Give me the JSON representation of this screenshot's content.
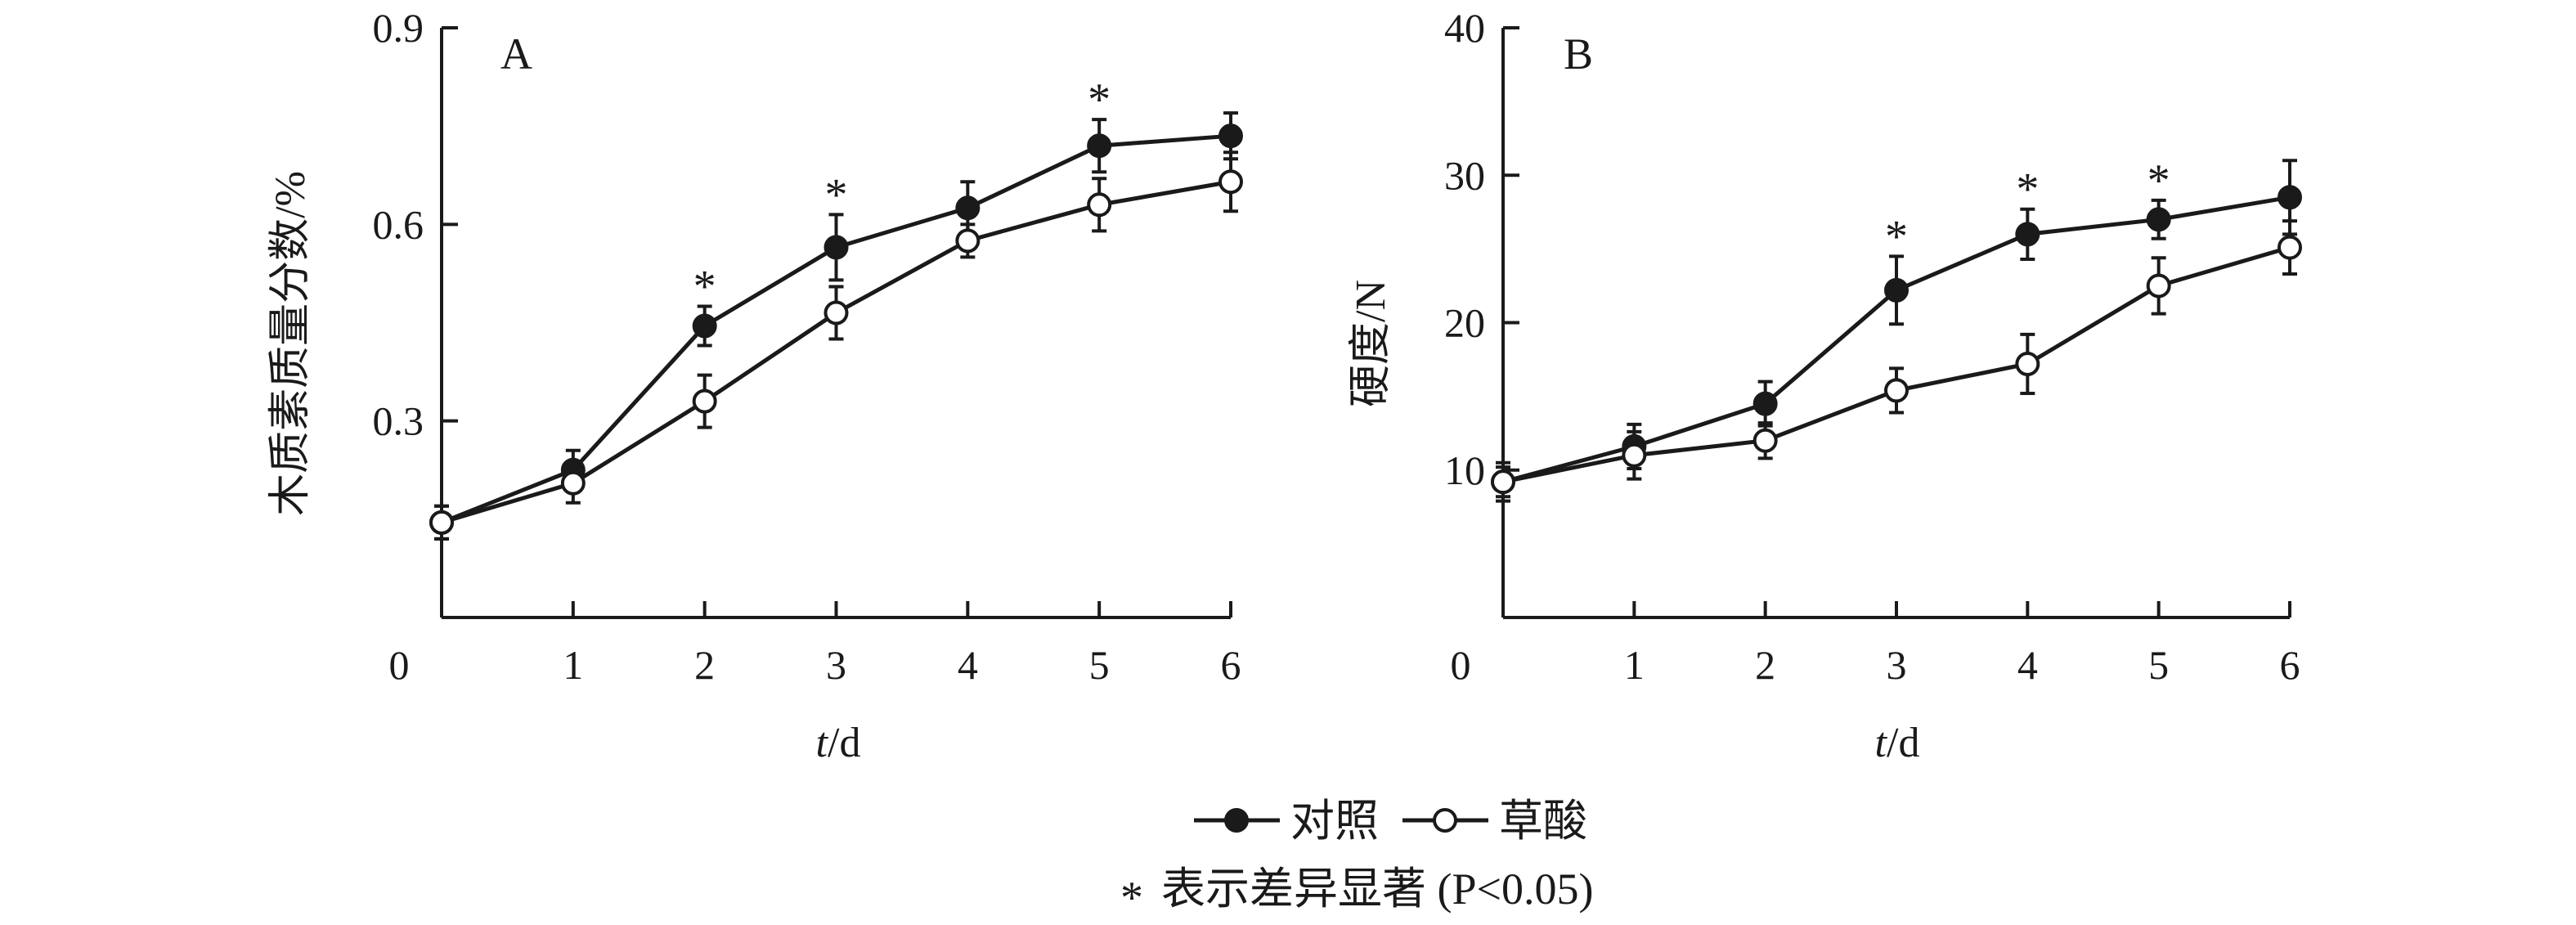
{
  "chart_data": [
    {
      "panel": "A",
      "type": "line",
      "ylabel": "木质素质量分数/%",
      "xlabel_italic": "t",
      "xlabel_rest": "/d",
      "x": [
        0,
        1,
        2,
        3,
        4,
        5,
        6
      ],
      "x_ticks": [
        "0",
        "1",
        "2",
        "3",
        "4",
        "5",
        "6"
      ],
      "y_ticks": [
        "0.3",
        "0.6",
        "0.9"
      ],
      "y_tick_values": [
        0.3,
        0.6,
        0.9
      ],
      "ylim": [
        0,
        0.9
      ],
      "xlim": [
        0,
        6
      ],
      "series": [
        {
          "name": "对照",
          "marker": "filled",
          "values": [
            0.145,
            0.225,
            0.445,
            0.565,
            0.625,
            0.72,
            0.735
          ],
          "errors": [
            0.025,
            0.03,
            0.03,
            0.05,
            0.04,
            0.04,
            0.035
          ]
        },
        {
          "name": "草酸",
          "marker": "open",
          "values": [
            0.145,
            0.205,
            0.33,
            0.465,
            0.575,
            0.63,
            0.665
          ],
          "errors": [
            0.025,
            0.03,
            0.04,
            0.04,
            0.025,
            0.04,
            0.045
          ]
        }
      ],
      "significance": [
        {
          "x": 2,
          "label": "*"
        },
        {
          "x": 3,
          "label": "*"
        },
        {
          "x": 5,
          "label": "*"
        }
      ]
    },
    {
      "panel": "B",
      "type": "line",
      "ylabel": "硬度/N",
      "xlabel_italic": "t",
      "xlabel_rest": "/d",
      "x": [
        0,
        1,
        2,
        3,
        4,
        5,
        6
      ],
      "x_ticks": [
        "0",
        "1",
        "2",
        "3",
        "4",
        "5",
        "6"
      ],
      "y_ticks": [
        "10",
        "20",
        "30",
        "40"
      ],
      "y_tick_values": [
        10,
        20,
        30,
        40
      ],
      "ylim": [
        0,
        40
      ],
      "xlim": [
        0,
        6
      ],
      "series": [
        {
          "name": "对照",
          "marker": "filled",
          "values": [
            9.2,
            11.6,
            14.5,
            22.2,
            26.0,
            27.0,
            28.5
          ],
          "errors": [
            1.0,
            1.5,
            1.5,
            2.3,
            1.7,
            1.3,
            2.5
          ]
        },
        {
          "name": "草酸",
          "marker": "open",
          "values": [
            9.2,
            11.0,
            12.0,
            15.4,
            17.2,
            22.5,
            25.1
          ],
          "errors": [
            1.3,
            1.6,
            1.2,
            1.5,
            2.0,
            1.9,
            1.8
          ]
        }
      ],
      "significance": [
        {
          "x": 3,
          "label": "*"
        },
        {
          "x": 4,
          "label": "*"
        },
        {
          "x": 5,
          "label": "*"
        }
      ]
    }
  ],
  "legend": {
    "control": "对照",
    "oxalic": "草酸",
    "note": "表示差异显著 (P<0.05)"
  }
}
